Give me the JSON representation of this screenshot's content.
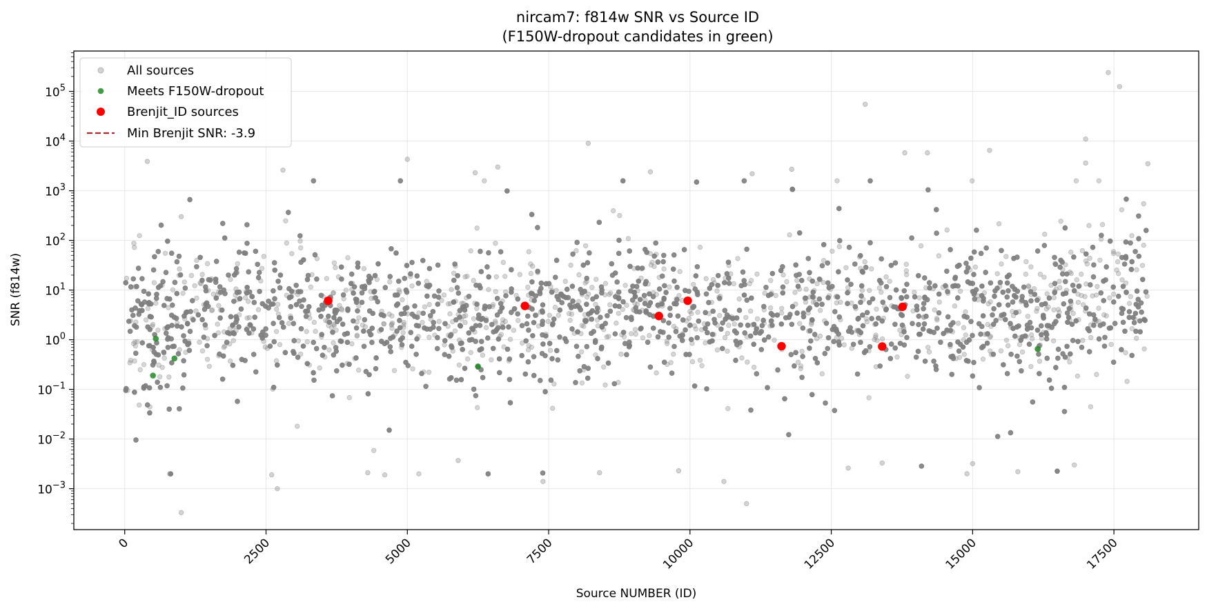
{
  "chart_data": {
    "type": "scatter",
    "title": "nircam7: f814w SNR vs Source ID",
    "subtitle": "(F150W-dropout candidates in green)",
    "xlabel": "Source NUMBER (ID)",
    "ylabel": "SNR (f814w)",
    "xlim": [
      -900,
      19000
    ],
    "ylim": [
      0.00015,
      650000
    ],
    "yscale": "log",
    "grid": true,
    "legend_position": "top-left",
    "x_ticks": [
      0,
      2500,
      5000,
      7500,
      10000,
      12500,
      15000,
      17500
    ],
    "x_tick_labels": [
      "0",
      "2500",
      "5000",
      "7500",
      "10000",
      "12500",
      "15000",
      "17500"
    ],
    "y_ticks": [
      0.001,
      0.01,
      0.1,
      1,
      10,
      100,
      1000,
      10000,
      100000
    ],
    "y_tick_labels": [
      {
        "base": "10",
        "exp": "−3"
      },
      {
        "base": "10",
        "exp": "−2"
      },
      {
        "base": "10",
        "exp": "−1"
      },
      {
        "base": "10",
        "exp": "0"
      },
      {
        "base": "10",
        "exp": "1"
      },
      {
        "base": "10",
        "exp": "2"
      },
      {
        "base": "10",
        "exp": "3"
      },
      {
        "base": "10",
        "exp": "4"
      },
      {
        "base": "10",
        "exp": "5"
      }
    ],
    "colors": {
      "all_sources": "#808080",
      "dropout": "#228B22",
      "brenjit": "#ff0000",
      "min_snr_line": "#a52a2a",
      "grid": "#e6e6e6"
    },
    "series": [
      {
        "name": "All sources",
        "id_range": [
          0,
          18100
        ],
        "approx_count": 9000,
        "typical_snr_range": [
          0.1,
          100
        ],
        "outliers": [
          {
            "x": 17400,
            "y": 240000
          },
          {
            "x": 17600,
            "y": 125000
          },
          {
            "x": 13100,
            "y": 55000
          },
          {
            "x": 17000,
            "y": 11000
          },
          {
            "x": 8200,
            "y": 9000
          },
          {
            "x": 15300,
            "y": 6500
          },
          {
            "x": 13800,
            "y": 5800
          },
          {
            "x": 14200,
            "y": 5800
          },
          {
            "x": 5000,
            "y": 4300
          },
          {
            "x": 400,
            "y": 3900
          },
          {
            "x": 17000,
            "y": 3600
          },
          {
            "x": 18100,
            "y": 3500
          },
          {
            "x": 6600,
            "y": 3000
          },
          {
            "x": 11800,
            "y": 2700
          },
          {
            "x": 2800,
            "y": 2600
          },
          {
            "x": 9300,
            "y": 2400
          },
          {
            "x": 6200,
            "y": 2300
          },
          {
            "x": 11100,
            "y": 2200
          },
          {
            "x": 1000,
            "y": 300
          },
          {
            "x": 11000,
            "y": 0.0005
          },
          {
            "x": 1000,
            "y": 0.00033
          },
          {
            "x": 2700,
            "y": 0.001
          },
          {
            "x": 2600,
            "y": 0.0019
          },
          {
            "x": 4300,
            "y": 0.0021
          },
          {
            "x": 4600,
            "y": 0.0019
          },
          {
            "x": 8400,
            "y": 0.0021
          },
          {
            "x": 9800,
            "y": 0.0023
          },
          {
            "x": 10600,
            "y": 0.0014
          },
          {
            "x": 7400,
            "y": 0.0014
          },
          {
            "x": 12800,
            "y": 0.0026
          },
          {
            "x": 13400,
            "y": 0.0033
          },
          {
            "x": 14900,
            "y": 0.002
          },
          {
            "x": 15000,
            "y": 0.0032
          },
          {
            "x": 15800,
            "y": 0.0022
          },
          {
            "x": 16800,
            "y": 0.003
          },
          {
            "x": 5900,
            "y": 0.0037
          }
        ]
      },
      {
        "name": "Meets F150W-dropout",
        "points": [
          {
            "x": 500,
            "y": 0.19
          },
          {
            "x": 550,
            "y": 1.05
          },
          {
            "x": 880,
            "y": 0.42
          },
          {
            "x": 6250,
            "y": 0.29
          },
          {
            "x": 16150,
            "y": 0.65
          }
        ]
      },
      {
        "name": "Brenjit_ID sources",
        "points": [
          {
            "x": 3600,
            "y": 6.1
          },
          {
            "x": 7080,
            "y": 4.8
          },
          {
            "x": 9450,
            "y": 3.0
          },
          {
            "x": 9960,
            "y": 6.1
          },
          {
            "x": 11620,
            "y": 0.74
          },
          {
            "x": 13400,
            "y": 0.73
          },
          {
            "x": 13760,
            "y": 4.6
          }
        ]
      },
      {
        "name": "Min Brenjit SNR: -3.9",
        "type": "hline",
        "y": -3.9
      }
    ]
  }
}
